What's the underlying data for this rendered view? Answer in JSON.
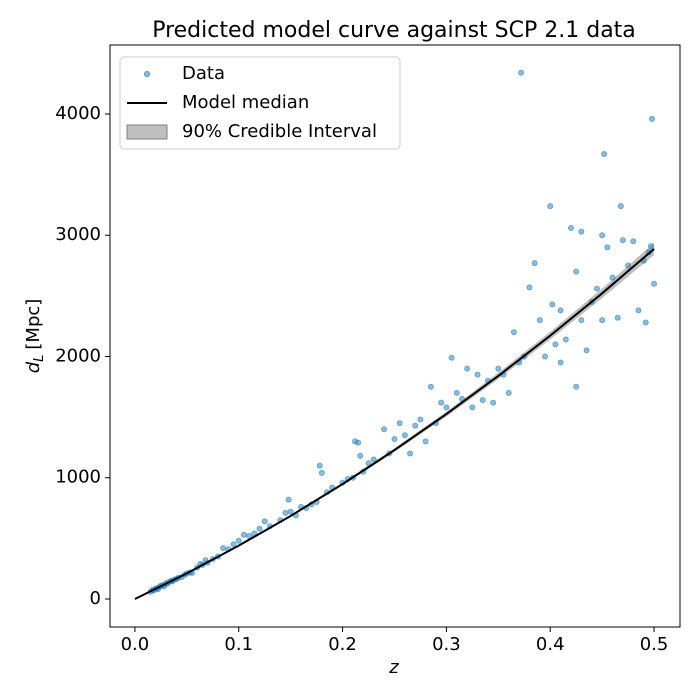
{
  "chart_data": {
    "type": "scatter",
    "title": "Predicted model curve against SCP 2.1 data",
    "xlabel": "z",
    "ylabel": {
      "symbol": "d",
      "subscript": "L",
      "unit": "[Mpc]"
    },
    "xlim": [
      -0.024,
      0.525
    ],
    "ylim": [
      -231,
      4569
    ],
    "xticks": [
      {
        "value": 0,
        "label": "0.0"
      },
      0.1,
      0.2,
      0.3,
      0.4,
      0.5
    ],
    "yticks": [
      0,
      1000,
      2000,
      3000,
      4000
    ],
    "grid": false,
    "legend": "upper left",
    "series": [
      {
        "name": "Data",
        "type": "scatter",
        "color": "#1f77b4",
        "x": [
          0.015,
          0.017,
          0.018,
          0.02,
          0.021,
          0.022,
          0.024,
          0.025,
          0.027,
          0.028,
          0.03,
          0.031,
          0.033,
          0.035,
          0.036,
          0.038,
          0.04,
          0.042,
          0.045,
          0.048,
          0.05,
          0.053,
          0.055,
          0.06,
          0.063,
          0.065,
          0.068,
          0.07,
          0.075,
          0.08,
          0.085,
          0.09,
          0.095,
          0.1,
          0.105,
          0.11,
          0.115,
          0.12,
          0.125,
          0.13,
          0.14,
          0.145,
          0.148,
          0.15,
          0.155,
          0.16,
          0.165,
          0.17,
          0.175,
          0.178,
          0.18,
          0.185,
          0.19,
          0.2,
          0.205,
          0.21,
          0.212,
          0.215,
          0.217,
          0.22,
          0.225,
          0.23,
          0.24,
          0.245,
          0.25,
          0.255,
          0.26,
          0.265,
          0.27,
          0.275,
          0.28,
          0.285,
          0.29,
          0.295,
          0.3,
          0.305,
          0.31,
          0.315,
          0.32,
          0.325,
          0.33,
          0.335,
          0.34,
          0.345,
          0.35,
          0.355,
          0.36,
          0.365,
          0.37,
          0.372,
          0.375,
          0.38,
          0.385,
          0.39,
          0.395,
          0.4,
          0.402,
          0.405,
          0.41,
          0.415,
          0.42,
          0.425,
          0.43,
          0.435,
          0.44,
          0.445,
          0.45,
          0.452,
          0.455,
          0.46,
          0.465,
          0.468,
          0.47,
          0.475,
          0.48,
          0.485,
          0.49,
          0.492,
          0.495,
          0.497,
          0.498,
          0.5,
          0.425,
          0.45,
          0.43,
          0.41
        ],
        "values": [
          60,
          75,
          70,
          85,
          90,
          80,
          100,
          110,
          115,
          105,
          130,
          125,
          140,
          150,
          145,
          160,
          165,
          175,
          180,
          200,
          210,
          220,
          215,
          260,
          290,
          280,
          320,
          300,
          330,
          350,
          420,
          410,
          450,
          480,
          530,
          520,
          540,
          580,
          640,
          600,
          650,
          710,
          820,
          720,
          690,
          760,
          750,
          780,
          800,
          1100,
          1040,
          880,
          920,
          960,
          990,
          1000,
          1300,
          1290,
          1180,
          1050,
          1120,
          1150,
          1400,
          1200,
          1320,
          1450,
          1350,
          1200,
          1430,
          1480,
          1300,
          1750,
          1450,
          1620,
          1580,
          1990,
          1700,
          1650,
          1900,
          1580,
          1850,
          1640,
          1800,
          1620,
          1900,
          1850,
          1700,
          2200,
          1950,
          4340,
          2000,
          2570,
          2770,
          2300,
          2000,
          3240,
          2430,
          2100,
          2380,
          2140,
          3060,
          2700,
          2300,
          2050,
          2450,
          2560,
          2300,
          3670,
          2900,
          2650,
          2320,
          3240,
          2960,
          2750,
          2950,
          2380,
          2790,
          2280,
          2860,
          2910,
          3960,
          2600,
          1750,
          3000,
          3030,
          1950
        ]
      },
      {
        "name": "Model median",
        "type": "line",
        "color": "#000000",
        "x": [
          0,
          0.05,
          0.1,
          0.15,
          0.2,
          0.25,
          0.3,
          0.35,
          0.4,
          0.45,
          0.5
        ],
        "values": [
          0,
          211,
          440,
          685,
          948,
          1228,
          1525,
          1840,
          2172,
          2521,
          2887
        ]
      },
      {
        "name": "90% Credible Interval",
        "type": "band",
        "color": "#808080",
        "x": [
          0,
          0.05,
          0.1,
          0.15,
          0.2,
          0.25,
          0.3,
          0.35,
          0.4,
          0.45,
          0.5
        ],
        "lower": [
          0,
          208,
          434,
          676,
          936,
          1212,
          1505,
          1814,
          2140,
          2481,
          2837
        ],
        "upper": [
          0,
          214,
          446,
          694,
          960,
          1244,
          1545,
          1866,
          2204,
          2561,
          2937
        ]
      }
    ]
  }
}
